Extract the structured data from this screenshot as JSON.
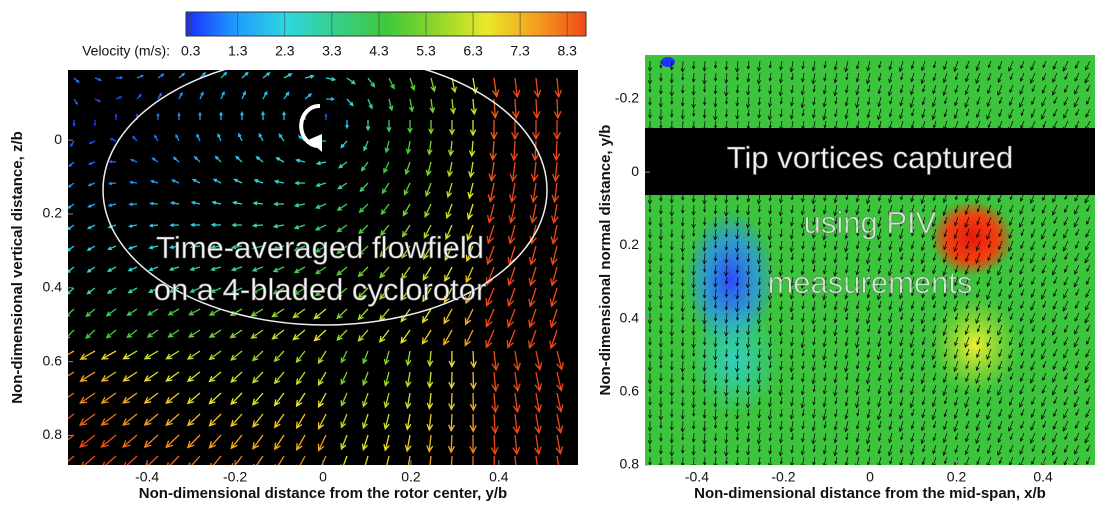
{
  "chart_data": [
    {
      "type": "quiver",
      "caption": [
        "Time-averaged flowfield",
        "on a 4-bladed cyclorotor"
      ],
      "xlabel": "Non-dimensional distance from the rotor center, y/b",
      "ylabel": "Non-dimensional vertical distance, z/b",
      "xlim": [
        -0.58,
        0.58
      ],
      "ylim": [
        -0.19,
        0.88
      ],
      "y_inverted": true,
      "xticks": [
        -0.4,
        -0.2,
        0,
        0.2,
        0.4
      ],
      "yticks": [
        0,
        0.2,
        0.4,
        0.6,
        0.8
      ],
      "background": "#000000",
      "colorbar": {
        "label": "Velocity (m/s):",
        "lim": [
          0.2,
          8.7
        ],
        "ticks": [
          0.3,
          1.3,
          2.3,
          3.3,
          4.3,
          5.3,
          6.3,
          7.3,
          8.3
        ],
        "colors": [
          "#1a2cff",
          "#1f9cff",
          "#2fd6e0",
          "#36d08a",
          "#3ec83c",
          "#8ed62a",
          "#e8e82a",
          "#f5a020",
          "#f04818"
        ]
      }
    },
    {
      "type": "quiver",
      "caption": [
        "Tip vortices captured",
        "using PIV",
        "measurements"
      ],
      "xlabel": "Non-dimensional distance from the mid-span, x/b",
      "ylabel": "Non-dimensional normal distance, y/b",
      "xlim": [
        -0.52,
        0.52
      ],
      "ylim": [
        -0.32,
        0.8
      ],
      "y_inverted": true,
      "xticks": [
        -0.4,
        -0.2,
        0,
        0.2,
        0.4
      ],
      "yticks": [
        -0.2,
        0,
        0.2,
        0.4,
        0.6,
        0.8
      ],
      "background": "#3cc43c",
      "color": "#000000"
    }
  ]
}
